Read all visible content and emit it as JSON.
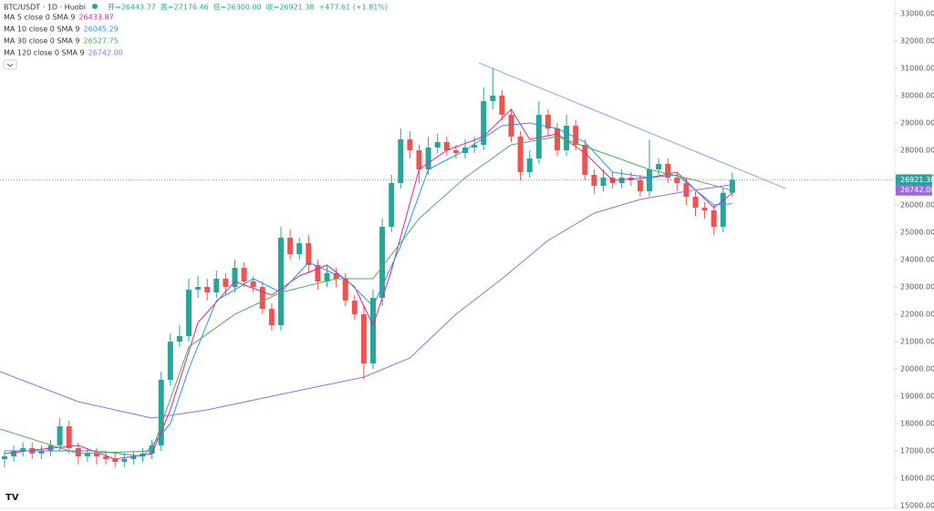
{
  "header": {
    "symbol": "BTC/USDT · 1D · Huobi",
    "ohlc_text": [
      "开=26443.77",
      "高=27176.46",
      "低=26300.00",
      "收=26921.38",
      "+477.61 (+1.81%)"
    ]
  },
  "chart_data": {
    "type": "candlestick",
    "up_color": "#26a69a",
    "down_color": "#ef5350",
    "ylim": [
      15000,
      33000
    ],
    "yticks": [
      {
        "value": 15000,
        "label": "15000.00"
      },
      {
        "value": 16000,
        "label": "16000.00"
      },
      {
        "value": 17000,
        "label": "17000.00"
      },
      {
        "value": 18000,
        "label": "18000.00"
      },
      {
        "value": 19000,
        "label": "19000.00"
      },
      {
        "value": 20000,
        "label": "20000.00"
      },
      {
        "value": 21000,
        "label": "21000.00"
      },
      {
        "value": 22000,
        "label": "22000.00"
      },
      {
        "value": 23000,
        "label": "23000.00"
      },
      {
        "value": 24000,
        "label": "24000.00"
      },
      {
        "value": 25000,
        "label": "25000.00"
      },
      {
        "value": 26000,
        "label": "26000.00"
      },
      {
        "value": 27000,
        "label": "27000.00"
      },
      {
        "value": 28000,
        "label": "28000.00"
      },
      {
        "value": 29000,
        "label": "29000.00"
      },
      {
        "value": 30000,
        "label": "30000.00"
      },
      {
        "value": 31000,
        "label": "31000.00"
      },
      {
        "value": 32000,
        "label": "32000.00"
      },
      {
        "value": 33000,
        "label": "33000.00"
      }
    ],
    "open": [
      16700,
      16800,
      17000,
      17100,
      16900,
      17000,
      17200,
      17900,
      17100,
      16800,
      16900,
      16800,
      16700,
      16600,
      16700,
      16800,
      16900,
      17200,
      19600,
      21000,
      21200,
      22900,
      23000,
      22800,
      23300,
      23000,
      23700,
      23200,
      23000,
      22200,
      21600,
      24800,
      24200,
      24600,
      23800,
      23200,
      23500,
      23300,
      22500,
      22000,
      20200,
      22600,
      25200,
      26800,
      28400,
      28000,
      27300,
      28100,
      28300,
      28000,
      27900,
      28100,
      28200,
      29800,
      30000,
      29300,
      28500,
      27200,
      27700,
      29300,
      28800,
      28000,
      28900,
      28200,
      27100,
      26700,
      27000,
      26800,
      27000,
      26900,
      26500,
      27300,
      27500,
      27000,
      26800,
      26300,
      25900,
      25800,
      25200,
      26443.77
    ],
    "high": [
      17000,
      17200,
      17300,
      17300,
      17200,
      17400,
      18200,
      18100,
      17300,
      17100,
      17100,
      17000,
      16900,
      16900,
      17000,
      17100,
      17400,
      19900,
      21300,
      21600,
      23300,
      23400,
      23300,
      23600,
      23500,
      24000,
      23900,
      23400,
      23200,
      22400,
      25200,
      25100,
      24800,
      24900,
      24000,
      23800,
      23700,
      23500,
      22700,
      22300,
      22900,
      25500,
      27100,
      28800,
      28700,
      28200,
      28500,
      28600,
      28500,
      28200,
      28400,
      28500,
      30300,
      31000,
      30200,
      29500,
      28700,
      28000,
      29800,
      29500,
      29000,
      29300,
      29100,
      28400,
      27300,
      27300,
      27200,
      27300,
      27200,
      27100,
      28400,
      27700,
      27700,
      27200,
      27000,
      26500,
      26100,
      26000,
      26600,
      27176.46
    ],
    "low": [
      16400,
      16600,
      16800,
      16700,
      16700,
      16800,
      17000,
      16900,
      16500,
      16600,
      16500,
      16500,
      16400,
      16400,
      16500,
      16600,
      16700,
      17000,
      19400,
      20800,
      21000,
      22600,
      22500,
      22600,
      22700,
      22800,
      23000,
      22800,
      22000,
      21400,
      21400,
      24000,
      24000,
      23500,
      22900,
      23000,
      23000,
      22300,
      21800,
      19600,
      20000,
      22300,
      25000,
      26600,
      27700,
      26800,
      27100,
      27900,
      27800,
      27700,
      27700,
      27900,
      28000,
      29500,
      29100,
      28300,
      26900,
      27000,
      27500,
      28500,
      27800,
      27800,
      28000,
      26900,
      26400,
      26500,
      26600,
      26600,
      26700,
      26300,
      26300,
      27100,
      26800,
      26500,
      26000,
      25600,
      25500,
      24900,
      25000,
      26300
    ],
    "close": [
      16800,
      17000,
      17100,
      16900,
      17000,
      17200,
      17900,
      17100,
      16800,
      16900,
      16800,
      16700,
      16600,
      16700,
      16800,
      16900,
      17200,
      19600,
      21000,
      21200,
      22900,
      23000,
      22800,
      23300,
      23000,
      23700,
      23200,
      23000,
      22200,
      21600,
      24800,
      24200,
      24600,
      23800,
      23200,
      23500,
      23300,
      22500,
      22000,
      20200,
      22600,
      25200,
      26800,
      28400,
      28000,
      27300,
      28100,
      28300,
      28000,
      27900,
      28100,
      28200,
      29800,
      30000,
      29300,
      28500,
      27200,
      27700,
      29300,
      28800,
      28000,
      28900,
      28200,
      27100,
      26700,
      27000,
      26800,
      27000,
      26900,
      26500,
      27300,
      27500,
      27000,
      26800,
      26300,
      25900,
      25800,
      25200,
      26443.77,
      26921.38
    ],
    "series": [
      {
        "name": "MA 5 close 0 SMA 9",
        "color": "#e91e8c",
        "legend_value": "26433.87",
        "x": [
          0,
          5,
          8,
          12,
          16,
          18,
          21,
          25,
          29,
          32,
          35,
          38,
          40,
          42,
          45,
          48,
          52,
          55,
          57,
          60,
          63,
          66,
          70,
          73,
          77,
          79
        ],
        "values": [
          16900,
          17100,
          17200,
          16700,
          16900,
          18500,
          21700,
          23200,
          22700,
          23400,
          23800,
          23000,
          21600,
          23600,
          27300,
          28000,
          28500,
          29500,
          28400,
          28600,
          27900,
          26900,
          27000,
          27200,
          25900,
          26433.87
        ]
      },
      {
        "name": "MA 10 close 0 SMA 9",
        "color": "#2196f3",
        "legend_value": "26045.29",
        "x": [
          0,
          5,
          10,
          15,
          18,
          20,
          23,
          27,
          30,
          33,
          37,
          40,
          43,
          46,
          50,
          54,
          57,
          60,
          63,
          66,
          70,
          73,
          77,
          79
        ],
        "values": [
          17000,
          17000,
          17000,
          16800,
          18000,
          20000,
          22500,
          23300,
          22800,
          23900,
          23300,
          22300,
          24500,
          27300,
          28000,
          28900,
          29000,
          28800,
          28300,
          27200,
          27000,
          27100,
          26000,
          26045.29
        ]
      },
      {
        "name": "MA 30 close 0 SMA 9",
        "color": "#4caf50",
        "legend_value": "26527.75",
        "x": [
          -0.5,
          8,
          16,
          20,
          25,
          30,
          36,
          40,
          45,
          50,
          55,
          60,
          65,
          70,
          75,
          79
        ],
        "values": [
          17800,
          16900,
          17000,
          20800,
          22000,
          22800,
          23300,
          23300,
          25500,
          27000,
          28200,
          28500,
          27900,
          27300,
          26900,
          26527.75
        ]
      },
      {
        "name": "MA 120 close 0 SMA 9",
        "color": "#9c6ade",
        "legend_value": "26742.00",
        "x": [
          -0.5,
          8,
          16,
          22,
          29,
          39,
          44,
          49,
          54,
          59,
          64,
          69,
          74,
          79
        ],
        "values": [
          19900,
          18800,
          18200,
          18500,
          19000,
          19700,
          20400,
          22000,
          23300,
          24700,
          25700,
          26200,
          26500,
          26742
        ]
      }
    ],
    "trendline": {
      "color": "#8fb1f5",
      "x": [
        51.5,
        84.8
      ],
      "values": [
        31200,
        26600
      ]
    }
  }
}
